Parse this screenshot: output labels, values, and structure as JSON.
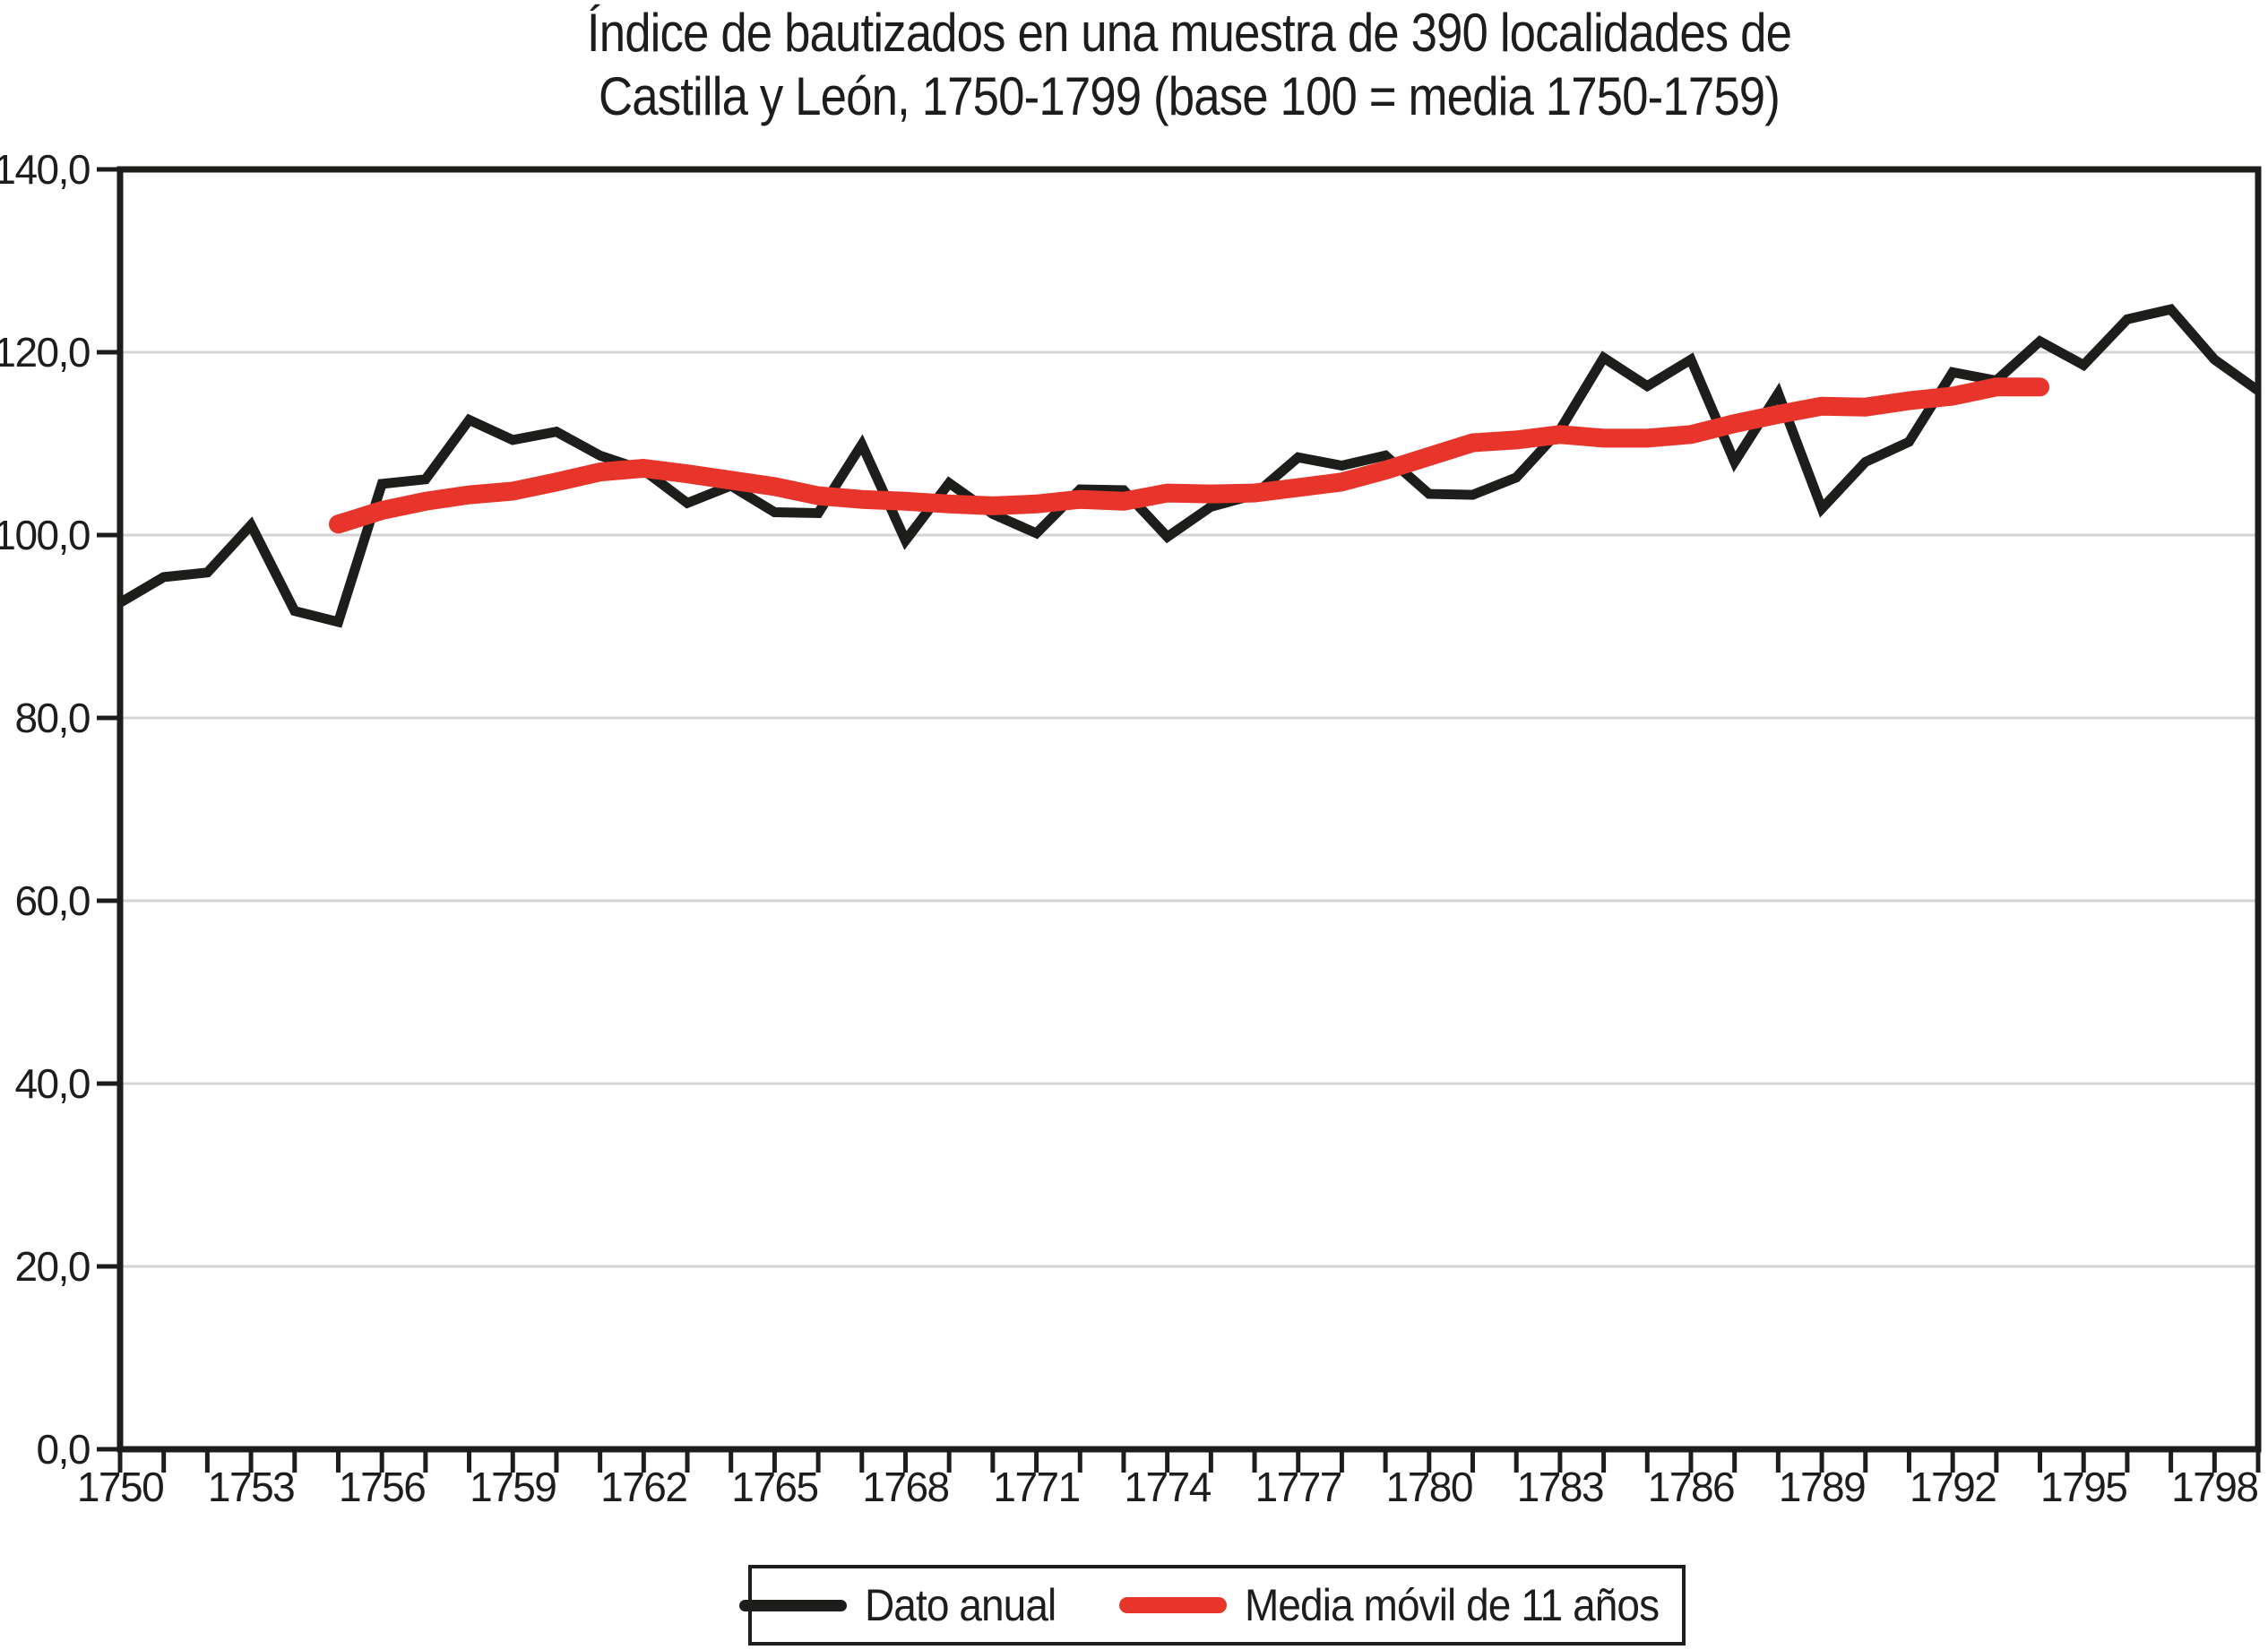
{
  "title": {
    "line1": "Índice de bautizados en una muestra de 390 localidades de",
    "line2": "Castilla y León, 1750-1799 (base 100 = media 1750-1759)"
  },
  "colors": {
    "annual_line": "#1d1d1b",
    "moving_avg_line": "#e7352c",
    "gridline": "#d4d4d4",
    "axis": "#1d1d1b",
    "background": "#ffffff"
  },
  "axes": {
    "y": {
      "tick_labels": [
        "140,0",
        "120,0",
        "100,0",
        "80,0",
        "60,0",
        "40,0",
        "20,0",
        "0,0"
      ],
      "tick_values": [
        140,
        120,
        100,
        80,
        60,
        40,
        20,
        0
      ],
      "min": 0,
      "max": 140
    },
    "x": {
      "labeled_years": [
        1750,
        1753,
        1756,
        1759,
        1762,
        1765,
        1768,
        1771,
        1774,
        1777,
        1780,
        1783,
        1786,
        1789,
        1792,
        1795,
        1798
      ],
      "minor_tick_every": 1,
      "min": 1750,
      "max": 1799
    }
  },
  "legend": {
    "items": [
      {
        "label": "Dato anual",
        "series": "annual"
      },
      {
        "label": "Media móvil de 11 años",
        "series": "moving_avg"
      }
    ]
  },
  "chart_data": {
    "type": "line",
    "title": "Índice de bautizados en una muestra de 390 localidades de Castilla y León, 1750-1799 (base 100 = media 1750-1759)",
    "xlabel": "",
    "ylabel": "",
    "xlim": [
      1750,
      1799
    ],
    "ylim": [
      0,
      140
    ],
    "grid": "horizontal",
    "legend_position": "bottom",
    "series": [
      {
        "name": "Dato anual",
        "color": "#1d1d1b",
        "years": [
          1750,
          1751,
          1752,
          1753,
          1754,
          1755,
          1756,
          1757,
          1758,
          1759,
          1760,
          1761,
          1762,
          1763,
          1764,
          1765,
          1766,
          1767,
          1768,
          1769,
          1770,
          1771,
          1772,
          1773,
          1774,
          1775,
          1776,
          1777,
          1778,
          1779,
          1780,
          1781,
          1782,
          1783,
          1784,
          1785,
          1786,
          1787,
          1788,
          1789,
          1790,
          1791,
          1792,
          1793,
          1794,
          1795,
          1796,
          1797,
          1798,
          1799
        ],
        "values": [
          92.6,
          95.4,
          95.9,
          101.1,
          91.7,
          90.5,
          105.6,
          106.1,
          112.6,
          110.4,
          111.3,
          108.7,
          107.1,
          103.5,
          105.4,
          102.5,
          102.4,
          109.9,
          99.4,
          105.7,
          102.3,
          100.2,
          105.0,
          104.9,
          99.8,
          103.1,
          104.4,
          108.5,
          107.6,
          108.7,
          104.5,
          104.4,
          106.3,
          111.5,
          119.4,
          116.3,
          119.2,
          108.0,
          115.5,
          102.9,
          108.0,
          110.2,
          117.8,
          116.9,
          121.2,
          118.6,
          123.6,
          124.7,
          119.2,
          115.8
        ]
      },
      {
        "name": "Media móvil de 11 años",
        "color": "#e7352c",
        "years": [
          1755,
          1756,
          1757,
          1758,
          1759,
          1760,
          1761,
          1762,
          1763,
          1764,
          1765,
          1766,
          1767,
          1768,
          1769,
          1770,
          1771,
          1772,
          1773,
          1774,
          1775,
          1776,
          1777,
          1778,
          1779,
          1780,
          1781,
          1782,
          1783,
          1784,
          1785,
          1786,
          1787,
          1788,
          1789,
          1790,
          1791,
          1792,
          1793,
          1794
        ],
        "values": [
          101.2,
          102.7,
          103.7,
          104.4,
          104.8,
          105.8,
          106.9,
          107.3,
          106.7,
          106.0,
          105.3,
          104.3,
          103.9,
          103.7,
          103.4,
          103.2,
          103.4,
          103.9,
          103.7,
          104.6,
          104.5,
          104.6,
          105.2,
          105.8,
          107.1,
          108.6,
          110.1,
          110.4,
          111.0,
          110.6,
          110.6,
          111.0,
          112.2,
          113.2,
          114.1,
          114.0,
          114.7,
          115.2,
          116.2,
          116.2
        ]
      }
    ]
  }
}
